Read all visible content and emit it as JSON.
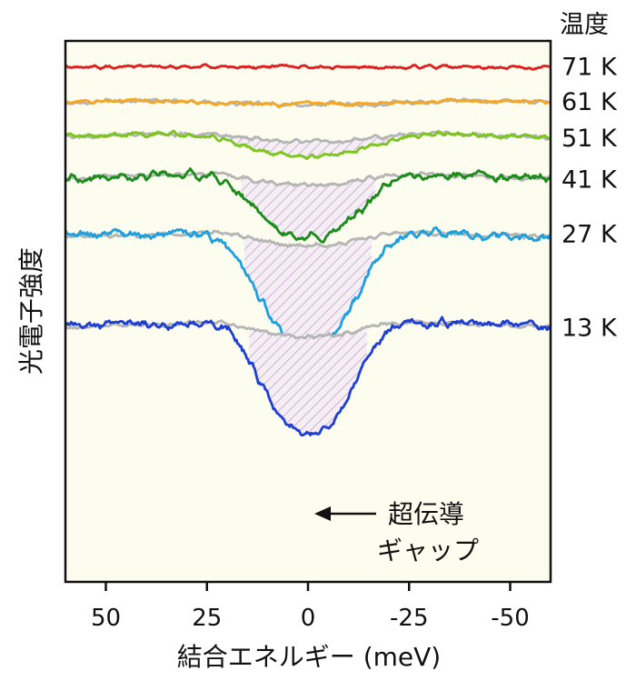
{
  "chart_data": {
    "type": "line",
    "title": "",
    "xlabel": "結合エネルギー (meV)",
    "ylabel": "光電子強度",
    "xlim": [
      60,
      -60
    ],
    "x_ticks": [
      50,
      25,
      0,
      -25,
      -50
    ],
    "x_tick_labels": [
      "50",
      "25",
      "0",
      "-25",
      "-50"
    ],
    "legend_title": "温度",
    "background_color": "#fcfcef",
    "reference_color": "#b5b5b5",
    "hatch_color": "#c5a3c8",
    "annotation": {
      "line1": "超伝導",
      "line2": "ギャップ",
      "points_to_x": 0
    },
    "series": [
      {
        "name": "71 K",
        "color": "#e01e1e",
        "offset": 0,
        "depth": 0.14,
        "width": 38,
        "noise": 0.035,
        "seed": 11
      },
      {
        "name": "61 K",
        "color": "#f5a623",
        "offset": 1.0,
        "depth": 0.22,
        "width": 32,
        "noise": 0.04,
        "seed": 23
      },
      {
        "name": "51 K",
        "color": "#7cc520",
        "offset": 2.0,
        "depth": 0.72,
        "width": 20,
        "noise": 0.05,
        "seed": 37
      },
      {
        "name": "41 K",
        "color": "#1a8c1a",
        "offset": 3.2,
        "depth": 1.9,
        "width": 16,
        "noise": 0.09,
        "seed": 41
      },
      {
        "name": "27 K",
        "color": "#1ea0e0",
        "offset": 4.9,
        "depth": 3.3,
        "width": 15,
        "noise": 0.1,
        "seed": 53
      },
      {
        "name": "13 K",
        "color": "#1f3fd4",
        "offset": 7.5,
        "depth": 3.25,
        "width": 14,
        "noise": 0.09,
        "seed": 67
      }
    ]
  }
}
